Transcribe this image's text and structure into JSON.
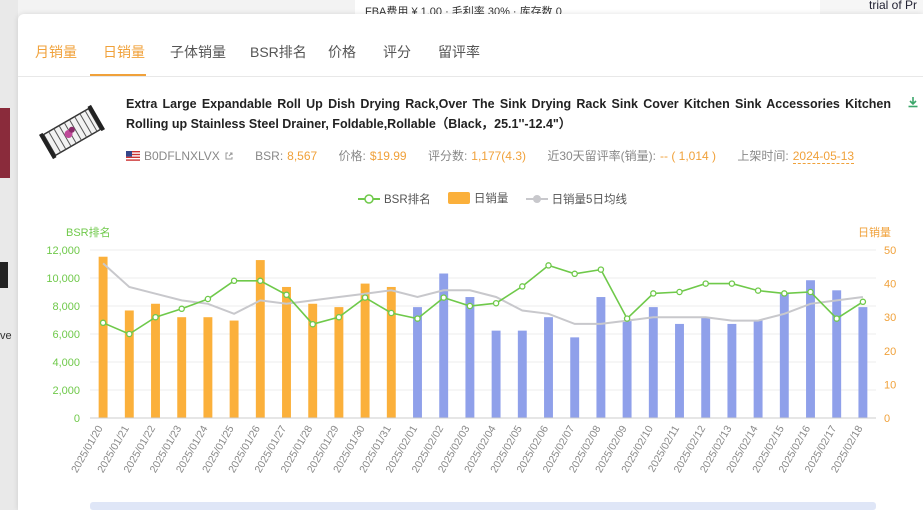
{
  "background": {
    "top_text": "FBA费用  ¥ 1.00  ·  毛利率  30%  ·  库存数  0",
    "right_text": "trial of Pr",
    "left_text": "ve"
  },
  "tabs": [
    {
      "label": "月销量"
    },
    {
      "label": "日销量"
    },
    {
      "label": "子体销量"
    },
    {
      "label": "BSR排名"
    },
    {
      "label": "价格"
    },
    {
      "label": "评分"
    },
    {
      "label": "留评率"
    }
  ],
  "active_tab": "日销量",
  "product": {
    "title": "Extra Large Expandable Roll Up Dish Drying Rack,Over The Sink Drying Rack Sink Cover Kitchen Sink Accessories Kitchen Rolling up Stainless Steel Drainer, Foldable,Rollable（Black，25.1''-12.4\"）",
    "asin": "B0DFLNXLVX",
    "bsr_label": "BSR:",
    "bsr_value": "8,567",
    "price_label": "价格:",
    "price_value": "$19.99",
    "rating_label": "评分数:",
    "rating_value": "1,177(4.3)",
    "review_rate_label": "近30天留评率(销量):",
    "review_rate_value": "-- ( 1,014 )",
    "launch_label": "上架时间:",
    "launch_value": "2024-05-13"
  },
  "colors": {
    "accent": "#f0a13a",
    "bsr_line": "#6fc94a",
    "bar_orange": "#fbb03b",
    "bar_blue": "#8fa0ea",
    "avg_line": "#c8c8cc"
  },
  "icons": {
    "download": "download-icon",
    "flag": "us-flag-icon",
    "external": "external-link-icon"
  },
  "chart_data": {
    "type": "bar",
    "legend": [
      "BSR排名",
      "日销量",
      "日销量5日均线"
    ],
    "left_axis_label": "BSR排名",
    "right_axis_label": "日销量",
    "left_ylim": [
      0,
      12000
    ],
    "left_ticks": [
      "0",
      "2,000",
      "4,000",
      "6,000",
      "8,000",
      "10,000",
      "12,000"
    ],
    "right_ylim": [
      0,
      50
    ],
    "right_ticks": [
      "0",
      "10",
      "20",
      "30",
      "40",
      "50"
    ],
    "categories": [
      "2025/01/20",
      "2025/01/21",
      "2025/01/22",
      "2025/01/23",
      "2025/01/24",
      "2025/01/25",
      "2025/01/26",
      "2025/01/27",
      "2025/01/28",
      "2025/01/29",
      "2025/01/30",
      "2025/01/31",
      "2025/02/01",
      "2025/02/02",
      "2025/02/03",
      "2025/02/04",
      "2025/02/05",
      "2025/02/06",
      "2025/02/07",
      "2025/02/08",
      "2025/02/09",
      "2025/02/10",
      "2025/02/11",
      "2025/02/12",
      "2025/02/13",
      "2025/02/14",
      "2025/02/15",
      "2025/02/16",
      "2025/02/17",
      "2025/02/18"
    ],
    "series": [
      {
        "name": "日销量",
        "type": "bar",
        "values": [
          48,
          32,
          34,
          30,
          30,
          29,
          47,
          39,
          34,
          33,
          40,
          39,
          33,
          43,
          36,
          26,
          26,
          30,
          24,
          36,
          29,
          33,
          28,
          30,
          28,
          29,
          37,
          41,
          38,
          33
        ]
      },
      {
        "name": "BSR排名",
        "type": "line",
        "values": [
          6800,
          6000,
          7200,
          7800,
          8500,
          9800,
          9800,
          8800,
          6700,
          7200,
          8600,
          7500,
          7100,
          8600,
          8000,
          8200,
          9400,
          10900,
          10300,
          10600,
          7100,
          8900,
          9000,
          9600,
          9600,
          9100,
          8900,
          9000,
          7100,
          8300
        ]
      },
      {
        "name": "日销量5日均线",
        "type": "line",
        "values": [
          46,
          39,
          37,
          35,
          34,
          31,
          35,
          34,
          35,
          36,
          37,
          38,
          36,
          38,
          38,
          36,
          32,
          31,
          28,
          28,
          29,
          30,
          30,
          30,
          29,
          29,
          31,
          34,
          35,
          36
        ]
      }
    ],
    "bar_color_split_after": "2025/01/31",
    "grid": true
  }
}
